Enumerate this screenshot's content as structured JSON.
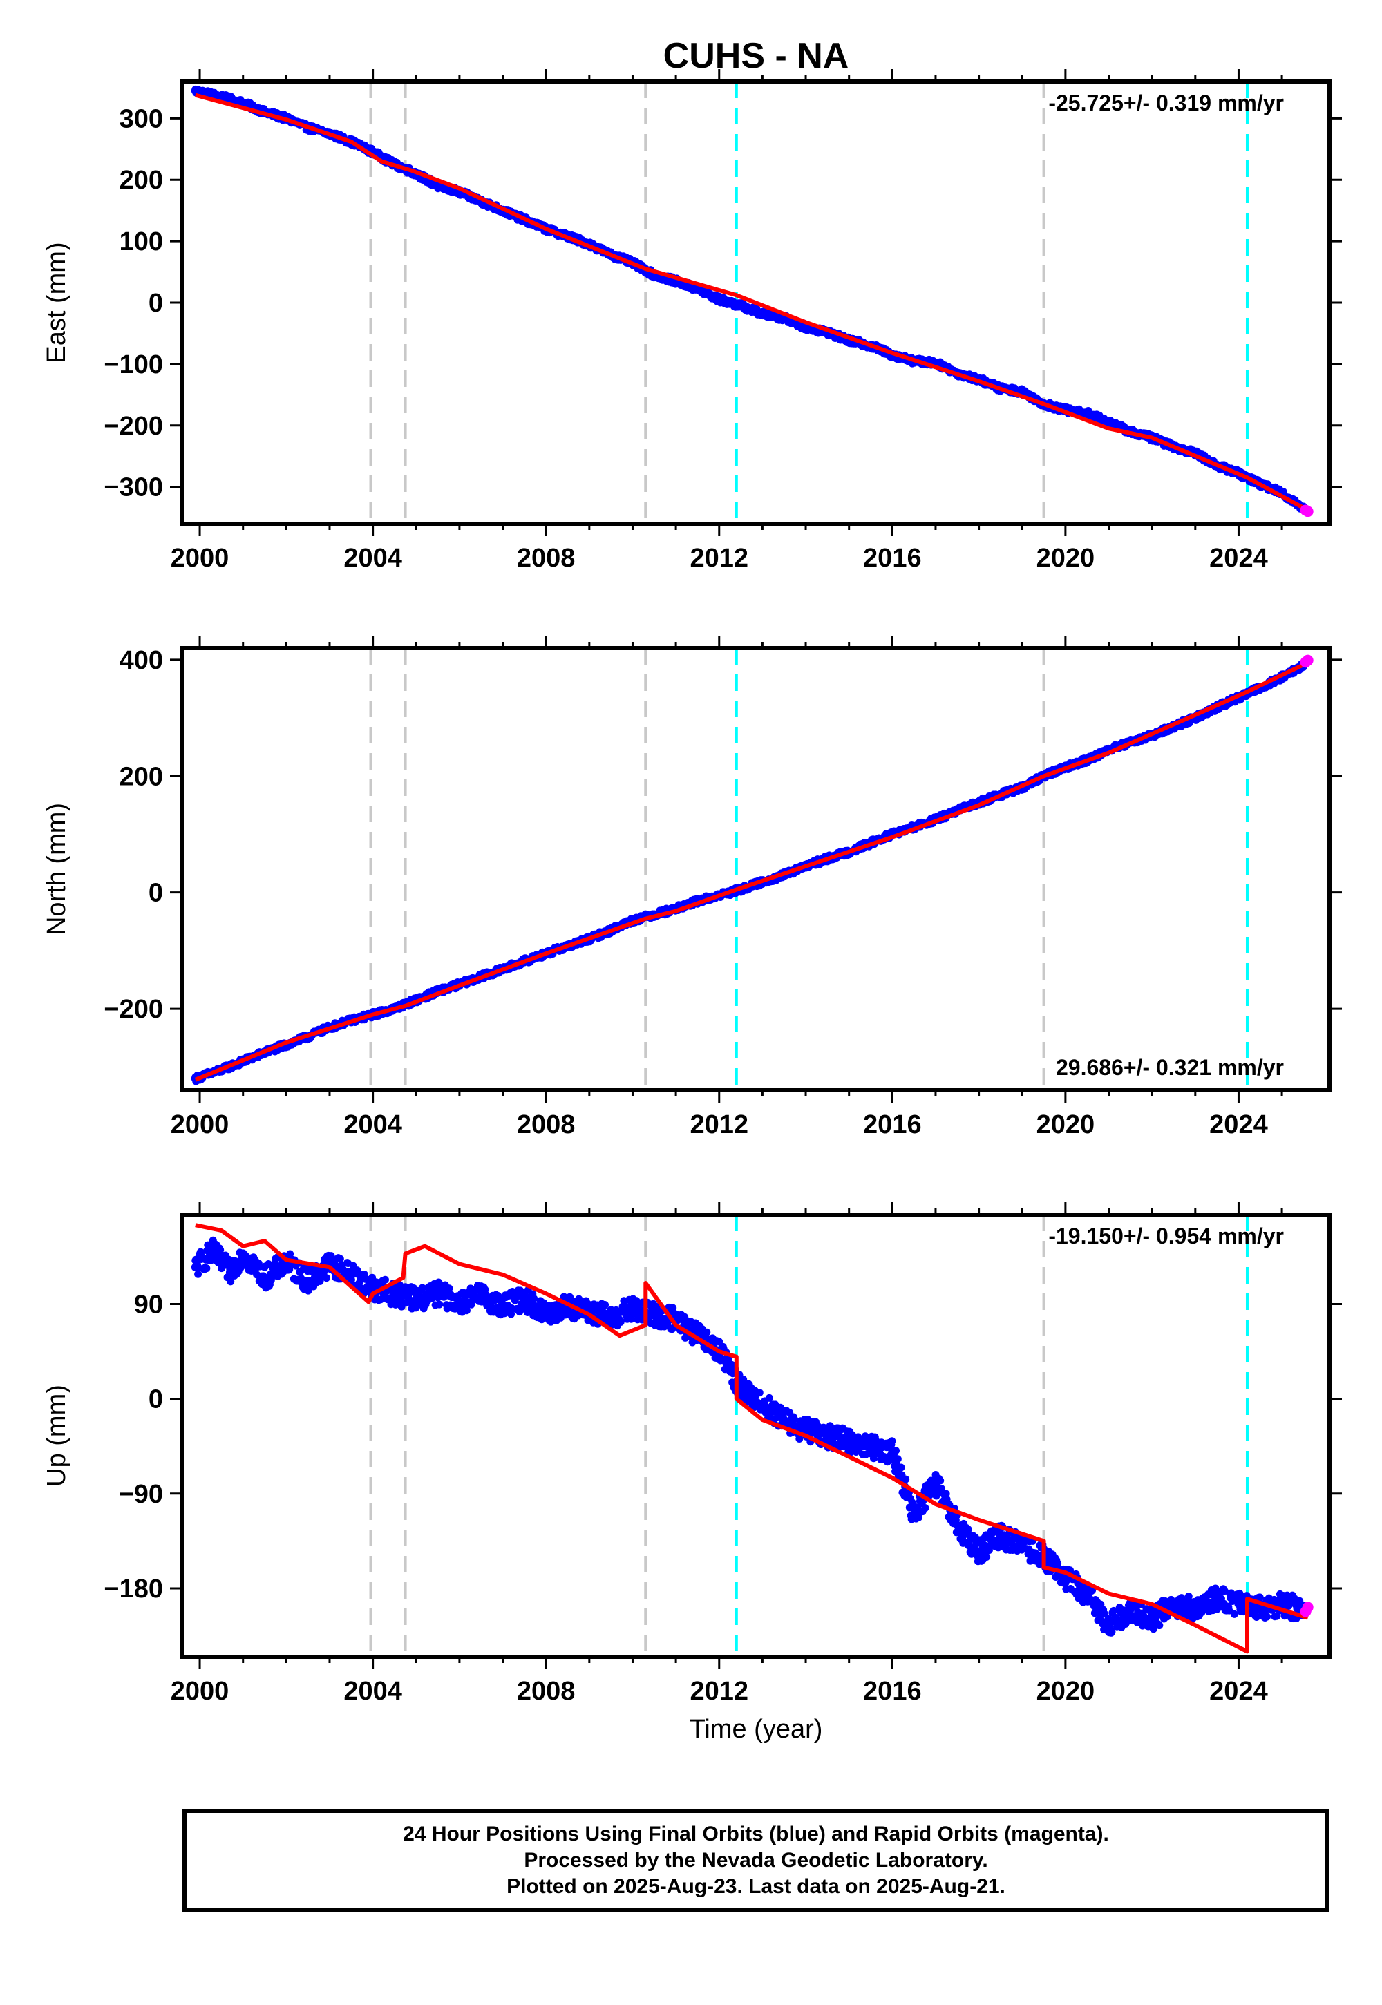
{
  "title": "CUHS - NA",
  "xlabel": "Time (year)",
  "colors": {
    "final_orbits": "#0000ff",
    "rapid_orbits": "#ff00ff",
    "model": "#ff0000",
    "equipment_change": "#c8c8c8",
    "earthquake": "#00ffff"
  },
  "event_lines": {
    "gray": [
      2003.95,
      2004.75,
      2010.3,
      2019.5
    ],
    "cyan": [
      2012.4,
      2024.2
    ]
  },
  "caption": [
    "24 Hour Positions Using Final Orbits (blue) and Rapid Orbits (magenta).",
    "Processed by the Nevada Geodetic Laboratory.",
    "Plotted on 2025-Aug-23. Last data on 2025-Aug-21."
  ],
  "chart_data": [
    {
      "type": "scatter",
      "component": "east",
      "ylabel": "East (mm)",
      "rate_label": "-25.725+/- 0.319 mm/yr",
      "rate_position": "top-right",
      "xlim": [
        1999.6,
        2026.1
      ],
      "ylim": [
        -360,
        360
      ],
      "xticks": [
        2000,
        2004,
        2008,
        2012,
        2016,
        2020,
        2024
      ],
      "yticks": [
        300,
        200,
        100,
        0,
        -100,
        -200,
        -300
      ],
      "ytick_labels": [
        "300",
        "200",
        "100",
        "0",
        "−100",
        "−200",
        "−300"
      ],
      "series": [
        {
          "name": "Final Orbits (blue)",
          "x": [
            1999.9,
            2000.5,
            2001.0,
            2001.5,
            2002.0,
            2002.5,
            2003.0,
            2003.5,
            2004.0,
            2004.5,
            2005.0,
            2005.5,
            2006.0,
            2006.5,
            2007.0,
            2007.5,
            2008.0,
            2008.5,
            2009.0,
            2009.5,
            2010.0,
            2010.5,
            2011.0,
            2011.5,
            2012.0,
            2012.5,
            2013.0,
            2013.5,
            2014.0,
            2014.5,
            2015.0,
            2015.5,
            2016.0,
            2016.5,
            2017.0,
            2017.5,
            2018.0,
            2018.5,
            2019.0,
            2019.5,
            2020.0,
            2020.5,
            2021.0,
            2021.5,
            2022.0,
            2022.5,
            2023.0,
            2023.5,
            2024.0,
            2024.5,
            2025.0,
            2025.5
          ],
          "y": [
            345,
            335,
            325,
            310,
            300,
            285,
            275,
            262,
            245,
            225,
            210,
            190,
            180,
            165,
            150,
            135,
            120,
            108,
            95,
            78,
            65,
            45,
            35,
            22,
            5,
            -5,
            -18,
            -25,
            -40,
            -48,
            -62,
            -70,
            -85,
            -95,
            -98,
            -115,
            -125,
            -140,
            -145,
            -165,
            -175,
            -180,
            -195,
            -210,
            -220,
            -235,
            -245,
            -265,
            -278,
            -295,
            -310,
            -335
          ]
        },
        {
          "name": "Rapid Orbits (magenta)",
          "x": [
            2025.55,
            2025.6
          ],
          "y": [
            -338,
            -340
          ]
        },
        {
          "name": "Model",
          "x": [
            1999.9,
            2002.0,
            2003.5,
            2004.2,
            2004.9,
            2006.0,
            2008.0,
            2010.3,
            2012.4,
            2014.0,
            2016.0,
            2018.0,
            2019.5,
            2021.0,
            2022.0,
            2024.2,
            2025.6
          ],
          "y": [
            338,
            298,
            262,
            230,
            215,
            186,
            120,
            55,
            12,
            -32,
            -82,
            -128,
            -165,
            -205,
            -220,
            -285,
            -338
          ]
        }
      ]
    },
    {
      "type": "scatter",
      "component": "north",
      "ylabel": "North (mm)",
      "rate_label": "29.686+/- 0.321 mm/yr",
      "rate_position": "bottom-right",
      "xlim": [
        1999.6,
        2026.1
      ],
      "ylim": [
        -340,
        420
      ],
      "xticks": [
        2000,
        2004,
        2008,
        2012,
        2016,
        2020,
        2024
      ],
      "yticks": [
        400,
        200,
        0,
        -200
      ],
      "ytick_labels": [
        "400",
        "200",
        "0",
        "−200"
      ],
      "series": [
        {
          "name": "Final Orbits (blue)",
          "x": [
            1999.9,
            2000.5,
            2001.0,
            2001.5,
            2002.0,
            2002.5,
            2003.0,
            2003.5,
            2004.0,
            2004.5,
            2005.0,
            2005.5,
            2006.0,
            2006.5,
            2007.0,
            2007.5,
            2008.0,
            2008.5,
            2009.0,
            2009.5,
            2010.0,
            2010.5,
            2011.0,
            2011.5,
            2012.0,
            2012.5,
            2013.0,
            2013.5,
            2014.0,
            2014.5,
            2015.0,
            2015.5,
            2016.0,
            2016.5,
            2017.0,
            2017.5,
            2018.0,
            2018.5,
            2019.0,
            2019.5,
            2020.0,
            2020.5,
            2021.0,
            2021.5,
            2022.0,
            2022.5,
            2023.0,
            2023.5,
            2024.0,
            2024.5,
            2025.0,
            2025.5
          ],
          "y": [
            -320,
            -305,
            -290,
            -275,
            -262,
            -248,
            -232,
            -220,
            -210,
            -200,
            -185,
            -170,
            -158,
            -145,
            -132,
            -118,
            -105,
            -92,
            -80,
            -65,
            -48,
            -38,
            -28,
            -15,
            -5,
            5,
            18,
            30,
            45,
            58,
            70,
            85,
            100,
            112,
            125,
            140,
            155,
            168,
            180,
            200,
            215,
            228,
            245,
            258,
            270,
            285,
            300,
            318,
            335,
            352,
            370,
            390
          ]
        },
        {
          "name": "Rapid Orbits (magenta)",
          "x": [
            2025.55,
            2025.6
          ],
          "y": [
            396,
            399
          ]
        },
        {
          "name": "Model",
          "x": [
            1999.9,
            2002.0,
            2004.0,
            2004.75,
            2006.0,
            2008.0,
            2010.3,
            2011.0,
            2012.4,
            2014.0,
            2016.0,
            2018.0,
            2019.5,
            2021.0,
            2023.0,
            2024.2,
            2025.6
          ],
          "y": [
            -322,
            -258,
            -210,
            -195,
            -160,
            -105,
            -45,
            -32,
            5,
            45,
            95,
            150,
            200,
            240,
            305,
            345,
            395
          ]
        }
      ]
    },
    {
      "type": "scatter",
      "component": "up",
      "ylabel": "Up (mm)",
      "rate_label": "-19.150+/- 0.954 mm/yr",
      "rate_position": "top-right",
      "xlim": [
        1999.6,
        2026.1
      ],
      "ylim": [
        -245,
        175
      ],
      "xticks": [
        2000,
        2004,
        2008,
        2012,
        2016,
        2020,
        2024
      ],
      "yticks": [
        90,
        0,
        -90,
        -180
      ],
      "ytick_labels": [
        "90",
        "0",
        "−90",
        "−180"
      ],
      "series": [
        {
          "name": "Final Orbits (blue)",
          "x": [
            1999.9,
            2000.3,
            2000.7,
            2001.0,
            2001.5,
            2002.0,
            2002.5,
            2003.0,
            2003.5,
            2004.0,
            2004.5,
            2005.0,
            2005.5,
            2006.0,
            2006.5,
            2007.0,
            2007.5,
            2008.0,
            2008.5,
            2009.0,
            2009.5,
            2010.0,
            2010.5,
            2011.0,
            2011.5,
            2012.0,
            2012.5,
            2013.0,
            2013.5,
            2014.0,
            2014.5,
            2015.0,
            2015.5,
            2016.0,
            2016.5,
            2017.0,
            2017.5,
            2018.0,
            2018.5,
            2019.0,
            2019.5,
            2020.0,
            2020.5,
            2021.0,
            2021.5,
            2022.0,
            2022.5,
            2023.0,
            2023.5,
            2024.0,
            2024.5,
            2025.0,
            2025.5
          ],
          "y": [
            125,
            140,
            120,
            138,
            115,
            130,
            112,
            128,
            118,
            105,
            100,
            95,
            100,
            92,
            98,
            88,
            95,
            80,
            88,
            82,
            78,
            85,
            80,
            75,
            60,
            45,
            10,
            -5,
            -20,
            -30,
            -35,
            -40,
            -45,
            -50,
            -110,
            -80,
            -120,
            -145,
            -130,
            -140,
            -150,
            -170,
            -185,
            -215,
            -200,
            -210,
            -195,
            -200,
            -190,
            -195,
            -198,
            -195,
            -200
          ]
        },
        {
          "name": "Rapid Orbits (magenta)",
          "x": [
            2025.55,
            2025.6
          ],
          "y": [
            -202,
            -198
          ]
        },
        {
          "name": "Model",
          "x": [
            1999.9,
            2000.5,
            2001.0,
            2001.5,
            2002.0,
            2003.0,
            2003.9,
            2004.0,
            2004.7,
            2004.75,
            2005.2,
            2006.0,
            2007.0,
            2008.0,
            2009.0,
            2009.7,
            2010.3,
            2010.3,
            2011.0,
            2012.0,
            2012.4,
            2012.4,
            2013.0,
            2014.0,
            2015.0,
            2016.0,
            2017.0,
            2018.0,
            2019.5,
            2019.5,
            2020.0,
            2021.0,
            2022.0,
            2023.0,
            2024.2,
            2024.2,
            2025.6
          ],
          "y": [
            165,
            160,
            145,
            150,
            132,
            125,
            92,
            100,
            115,
            138,
            145,
            128,
            118,
            100,
            80,
            60,
            70,
            110,
            70,
            45,
            40,
            0,
            -20,
            -35,
            -55,
            -75,
            -100,
            -115,
            -135,
            -160,
            -165,
            -185,
            -195,
            -215,
            -240,
            -190,
            -208
          ]
        }
      ]
    }
  ]
}
